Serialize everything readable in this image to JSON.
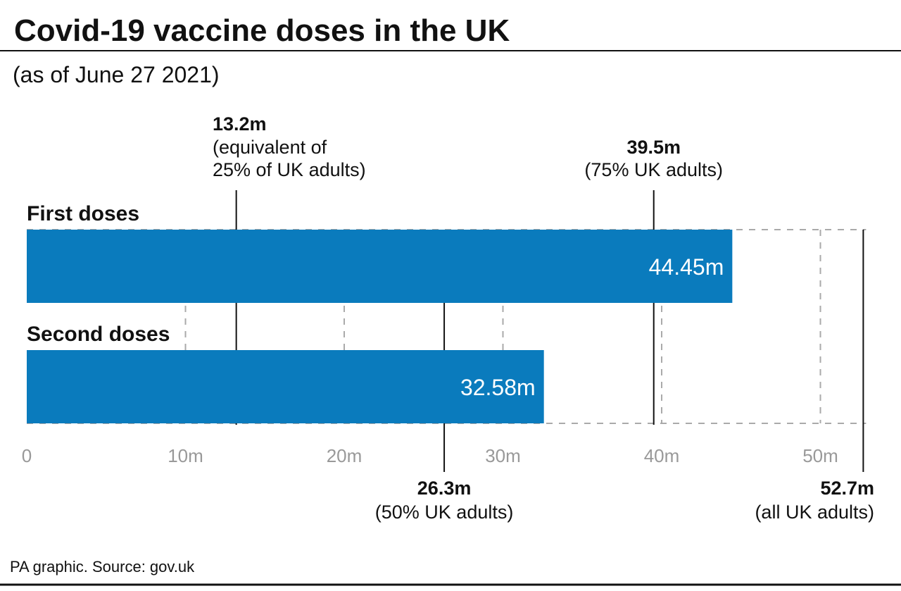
{
  "title": "Covid-19 vaccine doses in the UK",
  "subtitle": "(as of June 27 2021)",
  "footer": "PA graphic. Source: gov.uk",
  "colors": {
    "bar": "#0a7bbd",
    "grid": "#aaaaaa",
    "ref": "#111111",
    "tick": "#999999"
  },
  "chart_data": {
    "type": "bar",
    "orientation": "horizontal",
    "categories": [
      "First doses",
      "Second doses"
    ],
    "values": [
      44.45,
      32.58
    ],
    "value_labels": [
      "44.45m",
      "32.58m"
    ],
    "unit": "m",
    "xlim": [
      0,
      52.7
    ],
    "xticks": [
      0,
      10,
      20,
      30,
      40,
      50
    ],
    "xtick_labels": [
      "0",
      "10m",
      "20m",
      "30m",
      "40m",
      "50m"
    ],
    "grid": true,
    "reference_lines": [
      {
        "value": 13.2,
        "label": "13.2m",
        "note": [
          "(equivalent of",
          "25% of UK adults)"
        ]
      },
      {
        "value": 26.3,
        "label": "26.3m",
        "note": [
          "(50% UK adults)"
        ]
      },
      {
        "value": 39.5,
        "label": "39.5m",
        "note": [
          "(75% UK adults)"
        ]
      },
      {
        "value": 52.7,
        "label": "52.7m",
        "note": [
          "(all UK adults)"
        ]
      }
    ]
  }
}
